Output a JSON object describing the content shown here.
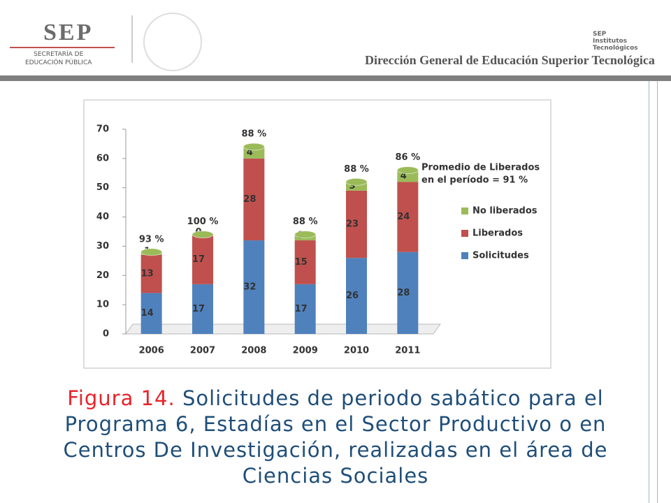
{
  "header": {
    "logo": "SEP",
    "agency": [
      "SECRETARÍA DE",
      "EDUCACIÓN PÚBLICA"
    ],
    "right_logo": [
      "SEP",
      "Institutos Tecnológicos"
    ],
    "title": "Dirección General de Educación Superior Tecnológica"
  },
  "chart_data": {
    "type": "bar",
    "stacked": true,
    "categories": [
      "2006",
      "2007",
      "2008",
      "2009",
      "2010",
      "2011"
    ],
    "series": [
      {
        "name": "Solicitudes",
        "color": "#4f81bd",
        "values": [
          14,
          17,
          32,
          17,
          26,
          28
        ]
      },
      {
        "name": "Liberados",
        "color": "#c0504d",
        "values": [
          13,
          17,
          28,
          15,
          23,
          24
        ]
      },
      {
        "name": "No liberados",
        "color": "#9bbb59",
        "values": [
          1,
          0,
          4,
          2,
          3,
          4
        ]
      }
    ],
    "top_labels": [
      "93 %",
      "100 %",
      "88 %",
      "88 %",
      "88 %",
      "86 %"
    ],
    "annotation": [
      "Promedio de Liberados",
      "en el período = 91 %"
    ],
    "ylim": [
      0,
      70
    ],
    "yticks": [
      0,
      10,
      20,
      30,
      40,
      50,
      60,
      70
    ],
    "grid": false,
    "legend": "right"
  },
  "caption": {
    "label": "Figura 14.",
    "text": "Solicitudes de periodo sabático para el Programa 6, Estadías en el Sector Productivo o en Centros De Investigación, realizadas en el área de Ciencias Sociales"
  }
}
